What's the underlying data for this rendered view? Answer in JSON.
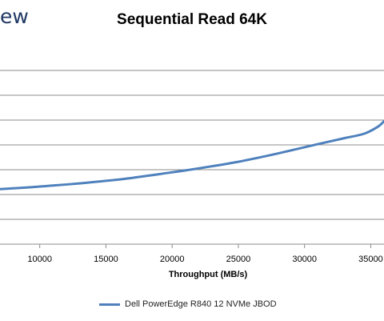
{
  "logo_text": "ew",
  "chart_data": {
    "type": "line",
    "title": "Sequential Read 64K",
    "xlabel": "Throughput (MB/s)",
    "ylabel": "",
    "x_ticks": [
      10000,
      15000,
      20000,
      25000,
      30000,
      35000
    ],
    "x_tick_labels": [
      "10000",
      "15000",
      "20000",
      "25000",
      "30000",
      "35000"
    ],
    "xlim": [
      7000,
      36000
    ],
    "ylim": [
      0,
      8
    ],
    "y_gridlines": [
      1,
      2,
      3,
      4,
      5,
      6,
      7
    ],
    "grid": true,
    "legend_position": "bottom",
    "series": [
      {
        "name": "Dell PowerEdge R840 12 NVMe JBOD",
        "color": "#4f81bd",
        "points": [
          [
            7000,
            2.22
          ],
          [
            9000,
            2.28
          ],
          [
            11000,
            2.36
          ],
          [
            13000,
            2.45
          ],
          [
            15000,
            2.55
          ],
          [
            17000,
            2.67
          ],
          [
            19000,
            2.82
          ],
          [
            21000,
            2.97
          ],
          [
            23000,
            3.14
          ],
          [
            25000,
            3.32
          ],
          [
            27000,
            3.54
          ],
          [
            29000,
            3.78
          ],
          [
            31000,
            4.03
          ],
          [
            33000,
            4.27
          ],
          [
            34500,
            4.45
          ],
          [
            35500,
            4.72
          ],
          [
            36000,
            4.95
          ]
        ]
      }
    ]
  }
}
